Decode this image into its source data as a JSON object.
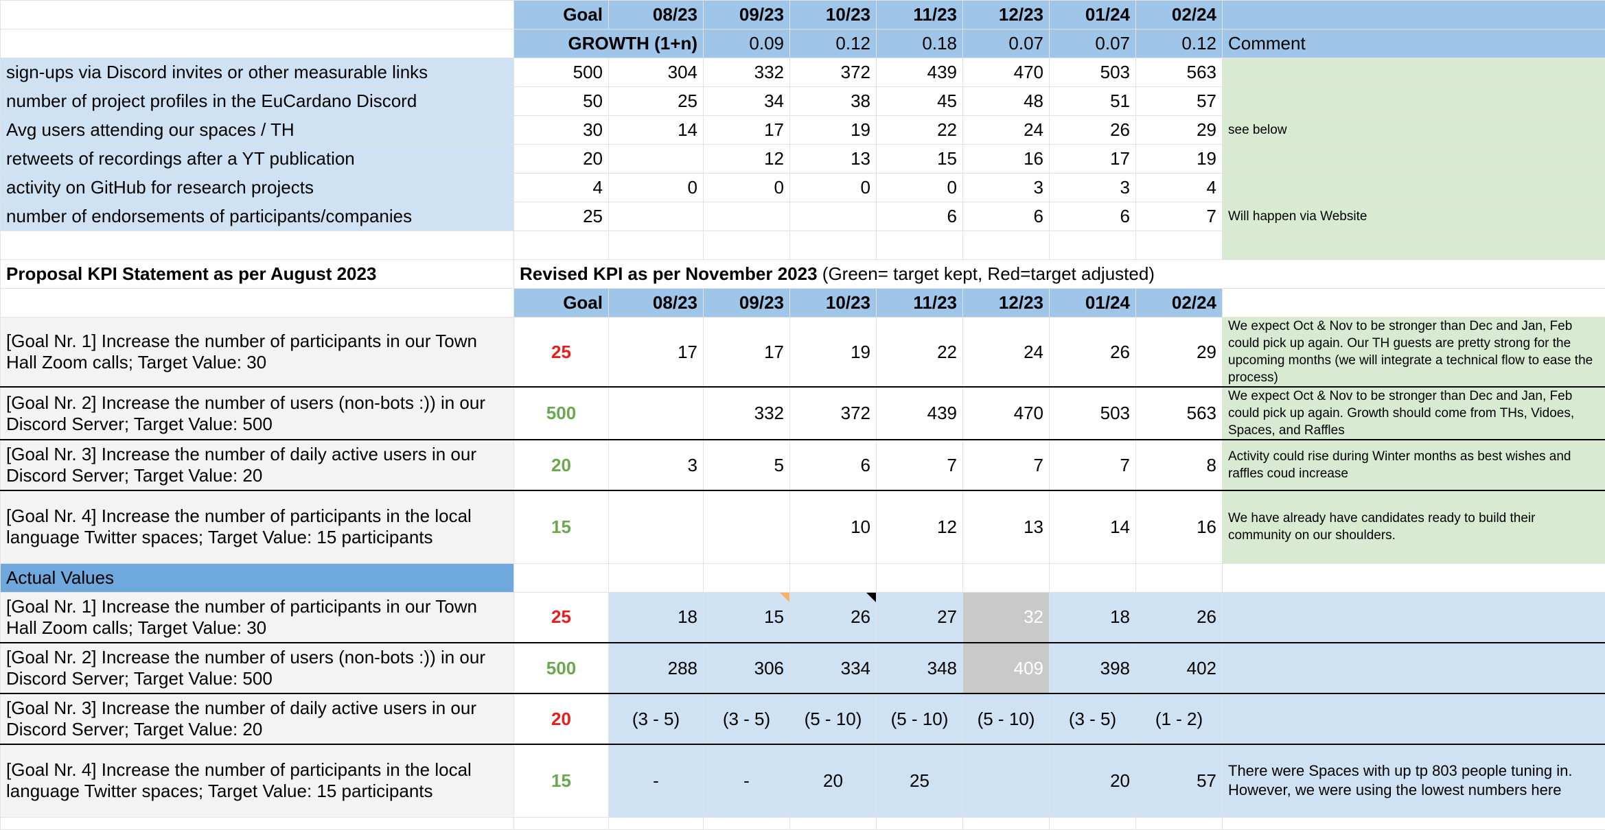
{
  "months": [
    "08/23",
    "09/23",
    "10/23",
    "11/23",
    "12/23",
    "01/24",
    "02/24"
  ],
  "goal_label": "Goal",
  "growth": {
    "label": "GROWTH (1+n)",
    "values": [
      "",
      "0.09",
      "0.12",
      "0.18",
      "0.07",
      "0.07",
      "0.12"
    ],
    "comment_label": "Comment"
  },
  "kpis": [
    {
      "label": "sign-ups via Discord invites or other measurable links",
      "goal": "500",
      "values": [
        "304",
        "332",
        "372",
        "439",
        "470",
        "503",
        "563"
      ],
      "comment": ""
    },
    {
      "label": "number of project profiles in the EuCardano Discord",
      "goal": "50",
      "values": [
        "25",
        "34",
        "38",
        "45",
        "48",
        "51",
        "57"
      ],
      "comment": ""
    },
    {
      "label": "Avg users attending our spaces / TH",
      "goal": "30",
      "values": [
        "14",
        "17",
        "19",
        "22",
        "24",
        "26",
        "29"
      ],
      "comment": "see below"
    },
    {
      "label": "retweets of recordings after a YT publication",
      "goal": "20",
      "values": [
        "",
        "12",
        "13",
        "15",
        "16",
        "17",
        "19"
      ],
      "comment": ""
    },
    {
      "label": "activity on GitHub for research projects",
      "goal": "4",
      "values": [
        "0",
        "0",
        "0",
        "0",
        "3",
        "3",
        "4"
      ],
      "comment": ""
    },
    {
      "label": "number of endorsements of participants/companies",
      "goal": "25",
      "values": [
        "",
        "",
        "",
        "6",
        "6",
        "6",
        "7"
      ],
      "comment": "Will happen via Website"
    }
  ],
  "section2": {
    "left_title": "Proposal KPI Statement as per August 2023",
    "right_title_bold": "Revised KPI as per November 2023",
    "right_title_rest": " (Green= target kept, Red=target adjusted)"
  },
  "revised": [
    {
      "label": "[Goal Nr. 1] Increase the number of participants in our Town Hall Zoom calls; Target Value: 30",
      "goal": "25",
      "goal_color": "red",
      "values": [
        "17",
        "17",
        "19",
        "22",
        "24",
        "26",
        "29"
      ],
      "comment": "We expect Oct & Nov to be stronger than Dec and Jan, Feb could pick up again. Our TH guests are pretty strong for the upcoming months (we will integrate a technical flow to ease the process)"
    },
    {
      "label": "[Goal Nr. 2] Increase the number of users (non-bots :)) in our Discord Server; Target Value: 500",
      "goal": "500",
      "goal_color": "green",
      "values": [
        "",
        "332",
        "372",
        "439",
        "470",
        "503",
        "563"
      ],
      "comment": "We expect Oct & Nov to be stronger than Dec and Jan, Feb could pick up again. Growth should come from THs, Vidoes, Spaces, and Raffles"
    },
    {
      "label": "[Goal Nr. 3] Increase the number of daily active users in our Discord Server; Target Value: 20",
      "goal": "20",
      "goal_color": "green",
      "values": [
        "3",
        "5",
        "6",
        "7",
        "7",
        "7",
        "8"
      ],
      "comment": "Activity could rise during Winter months as best wishes and raffles coud increase"
    },
    {
      "label": "[Goal Nr. 4] Increase the number of participants in the local language Twitter spaces; Target Value: 15 participants",
      "goal": "15",
      "goal_color": "green",
      "values": [
        "",
        "",
        "10",
        "12",
        "13",
        "14",
        "16"
      ],
      "comment": "We have already have candidates ready to build their community on our shoulders."
    }
  ],
  "actual_header": "Actual Values",
  "actual": [
    {
      "label": "[Goal Nr. 1] Increase the number of participants in our Town Hall Zoom calls; Target Value: 30",
      "goal": "25",
      "goal_color": "red",
      "values": [
        "18",
        "15",
        "26",
        "27",
        "32",
        "18",
        "26"
      ],
      "comment": ""
    },
    {
      "label": "[Goal Nr. 2] Increase the number of users (non-bots :)) in our Discord Server; Target Value: 500",
      "goal": "500",
      "goal_color": "green",
      "values": [
        "288",
        "306",
        "334",
        "348",
        "409",
        "398",
        "402"
      ],
      "comment": ""
    },
    {
      "label": "[Goal Nr. 3] Increase the number of daily active users in our Discord Server; Target Value: 20",
      "goal": "20",
      "goal_color": "red",
      "values": [
        "(3 - 5)",
        "(3 - 5)",
        "(5 - 10)",
        "(5 - 10)",
        "(5 - 10)",
        "(3 - 5)",
        "(1 - 2)"
      ],
      "comment": ""
    },
    {
      "label": "[Goal Nr. 4] Increase the number of participants in the local language Twitter spaces; Target Value: 15 participants",
      "goal": "15",
      "goal_color": "green",
      "values": [
        "-",
        "-",
        "20",
        "25",
        "",
        "20",
        "57"
      ],
      "comment": "There were Spaces with up tp 803 people tuning in. However, we were using the lowest numbers here"
    }
  ],
  "colors": {
    "light_blue": "#cfe2f3",
    "header_blue": "#9fc5e8",
    "section_blue": "#6fa8dc",
    "comment_green": "#d9ead3",
    "label_gray": "#f3f3f3",
    "red": "#ea1c1c",
    "green": "#6aa84f"
  }
}
